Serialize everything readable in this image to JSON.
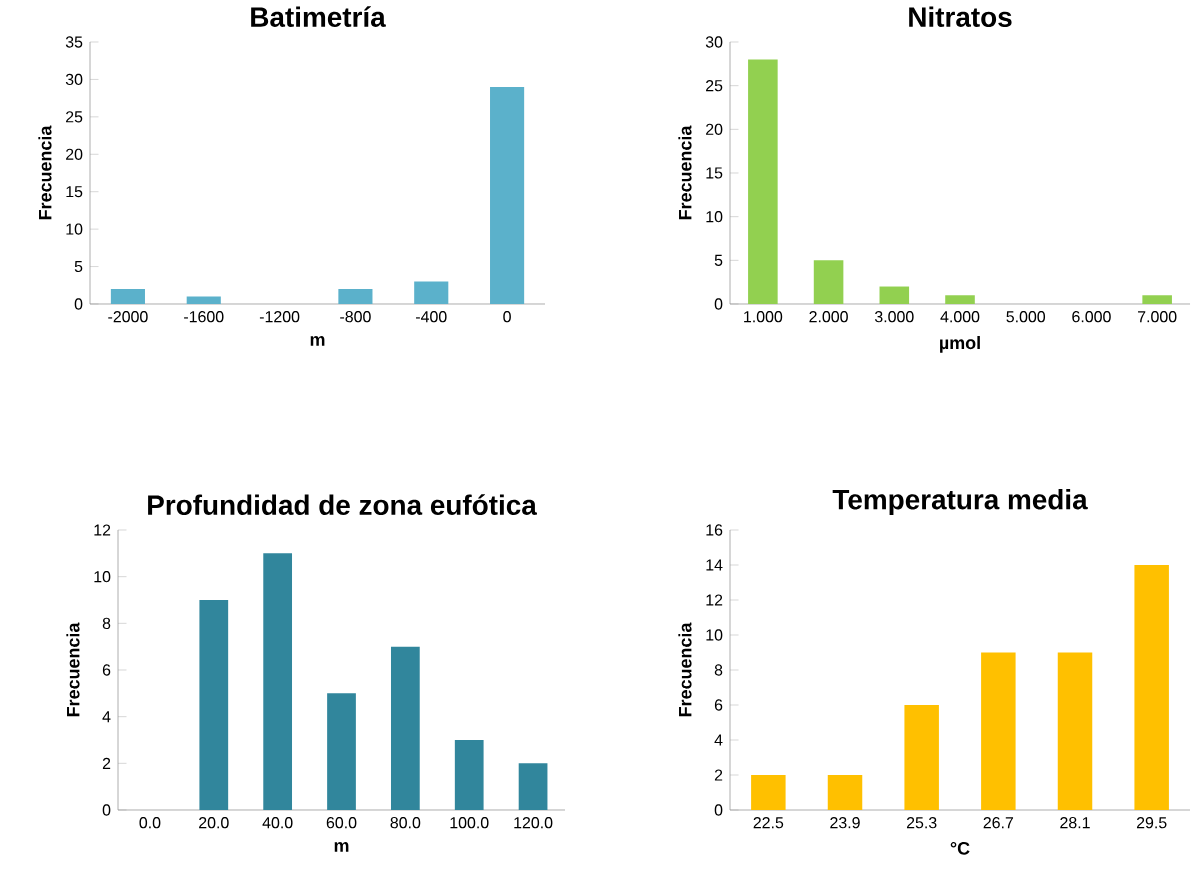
{
  "chart_data": [
    {
      "type": "bar",
      "title": "Batimetría",
      "xlabel": "m",
      "ylabel": "Frecuencia",
      "categories": [
        "-2000",
        "-1600",
        "-1200",
        "-800",
        "-400",
        "0"
      ],
      "values": [
        2,
        1,
        0,
        2,
        3,
        29
      ],
      "color": "#5bb1cb",
      "ylim": [
        0,
        35
      ],
      "yticks": [
        0,
        5,
        10,
        15,
        20,
        25,
        30,
        35
      ]
    },
    {
      "type": "bar",
      "title": "Nitratos",
      "xlabel": "µmol",
      "ylabel": "Frecuencia",
      "categories": [
        "1.000",
        "2.000",
        "3.000",
        "4.000",
        "5.000",
        "6.000",
        "7.000"
      ],
      "values": [
        28,
        5,
        2,
        1,
        0,
        0,
        1
      ],
      "color": "#92d050",
      "ylim": [
        0,
        30
      ],
      "yticks": [
        0,
        5,
        10,
        15,
        20,
        25,
        30
      ]
    },
    {
      "type": "bar",
      "title": "Profundidad de zona eufótica",
      "xlabel": "m",
      "ylabel": "Frecuencia",
      "categories": [
        "0.0",
        "20.0",
        "40.0",
        "60.0",
        "80.0",
        "100.0",
        "120.0"
      ],
      "values": [
        0,
        9,
        11,
        5,
        7,
        3,
        2
      ],
      "color": "#31869c",
      "ylim": [
        0,
        12
      ],
      "yticks": [
        0,
        2,
        4,
        6,
        8,
        10,
        12
      ]
    },
    {
      "type": "bar",
      "title": "Temperatura media",
      "xlabel": "°C",
      "ylabel": "Frecuencia",
      "categories": [
        "22.5",
        "23.9",
        "25.3",
        "26.7",
        "28.1",
        "29.5"
      ],
      "values": [
        2,
        2,
        6,
        9,
        9,
        14
      ],
      "color": "#ffc000",
      "ylim": [
        0,
        16
      ],
      "yticks": [
        0,
        2,
        4,
        6,
        8,
        10,
        12,
        14,
        16
      ]
    }
  ]
}
